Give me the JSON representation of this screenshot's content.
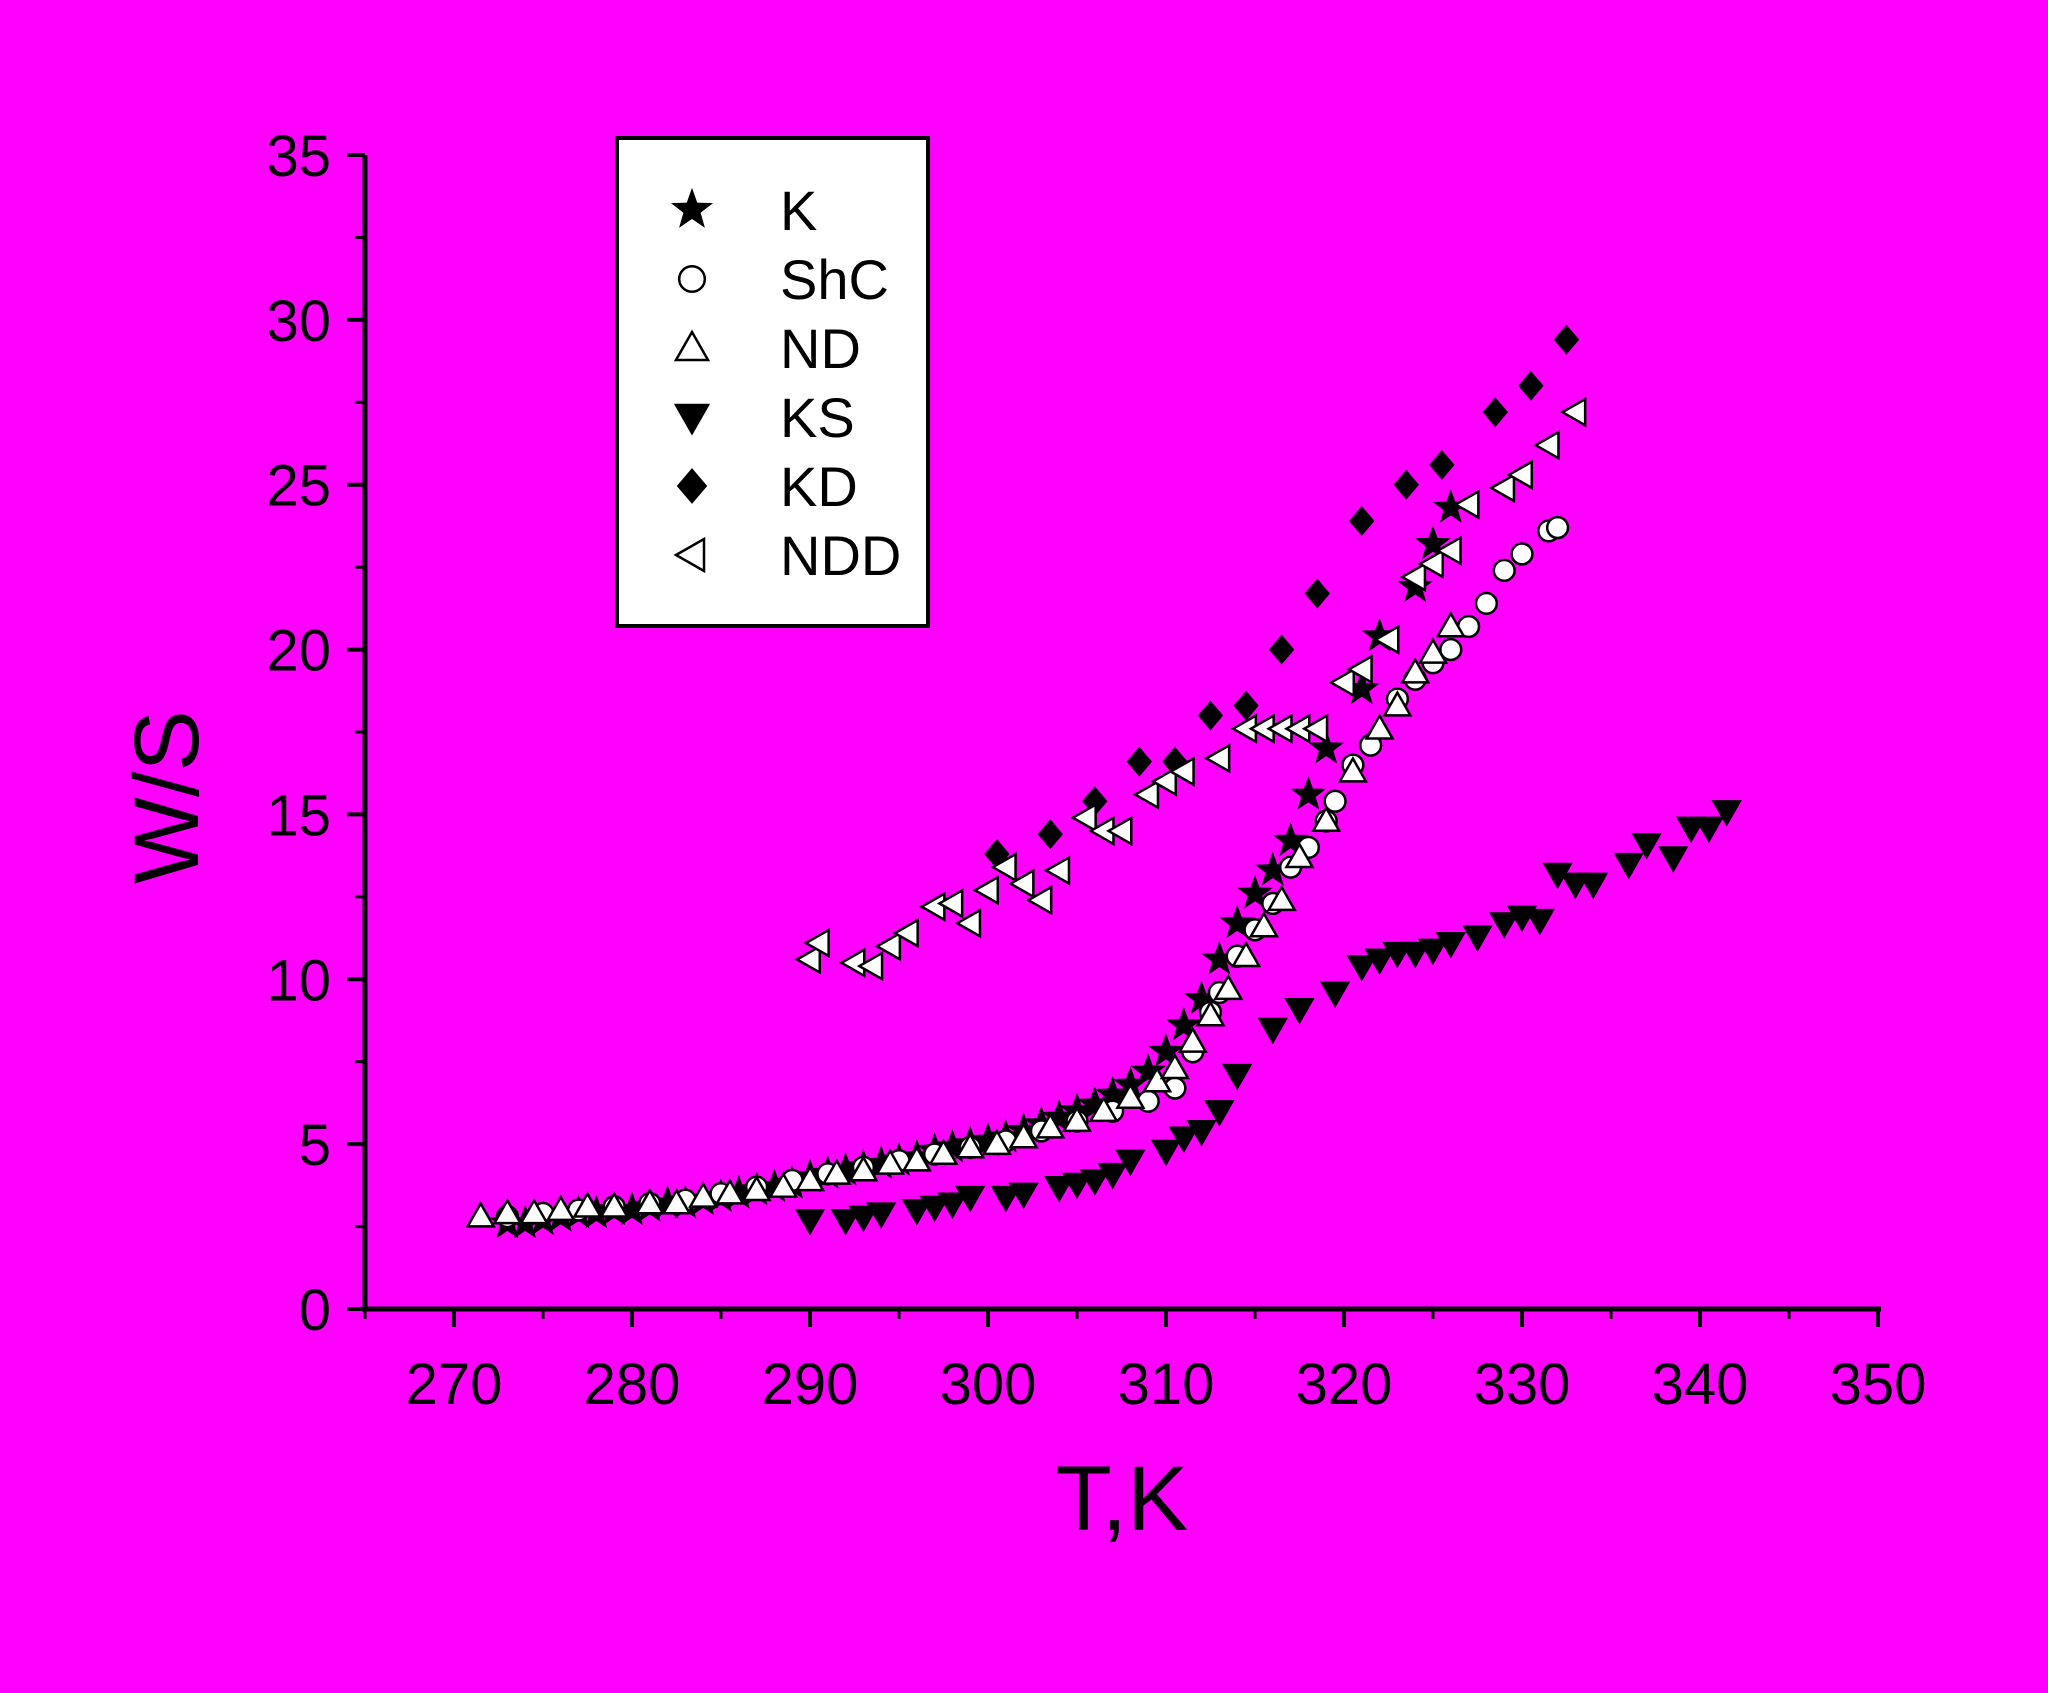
{
  "chart_data": {
    "type": "scatter",
    "xlabel": "T,K",
    "ylabel": "W/S",
    "xlim": [
      265,
      350
    ],
    "ylim": [
      0,
      35
    ],
    "x_ticks": [
      270,
      280,
      290,
      300,
      310,
      320,
      330,
      340,
      350
    ],
    "y_ticks": [
      0,
      5,
      10,
      15,
      20,
      25,
      30,
      35
    ],
    "grid": false,
    "legend_position": "top-left",
    "background": "#ff00ff",
    "series": [
      {
        "name": "K",
        "marker": "star",
        "fill": "#000000",
        "points": [
          [
            273,
            2.6
          ],
          [
            274,
            2.6
          ],
          [
            275,
            2.7
          ],
          [
            276,
            2.8
          ],
          [
            277,
            2.9
          ],
          [
            278,
            2.9
          ],
          [
            279,
            3.0
          ],
          [
            280,
            3.0
          ],
          [
            281,
            3.1
          ],
          [
            282,
            3.2
          ],
          [
            283,
            3.2
          ],
          [
            284,
            3.3
          ],
          [
            285,
            3.4
          ],
          [
            286,
            3.5
          ],
          [
            287,
            3.6
          ],
          [
            288,
            3.7
          ],
          [
            289,
            3.8
          ],
          [
            290,
            4.0
          ],
          [
            291,
            4.1
          ],
          [
            292,
            4.2
          ],
          [
            293,
            4.3
          ],
          [
            294,
            4.4
          ],
          [
            295,
            4.5
          ],
          [
            296,
            4.6
          ],
          [
            297,
            4.8
          ],
          [
            298,
            4.9
          ],
          [
            299,
            5.0
          ],
          [
            300,
            5.1
          ],
          [
            301,
            5.2
          ],
          [
            302,
            5.4
          ],
          [
            303,
            5.6
          ],
          [
            304,
            5.8
          ],
          [
            305,
            6.0
          ],
          [
            306,
            6.2
          ],
          [
            307,
            6.5
          ],
          [
            308,
            6.8
          ],
          [
            309,
            7.2
          ],
          [
            310,
            7.8
          ],
          [
            311,
            8.6
          ],
          [
            312,
            9.4
          ],
          [
            313,
            10.6
          ],
          [
            314,
            11.7
          ],
          [
            315,
            12.6
          ],
          [
            316,
            13.3
          ],
          [
            317,
            14.2
          ],
          [
            318,
            15.6
          ],
          [
            319,
            17.0
          ],
          [
            321,
            18.8
          ],
          [
            322,
            20.4
          ],
          [
            324,
            21.9
          ],
          [
            325,
            23.2
          ],
          [
            326,
            24.3
          ]
        ]
      },
      {
        "name": "ShC",
        "marker": "circle",
        "fill": "#ffffff",
        "points": [
          [
            273,
            2.8
          ],
          [
            275,
            2.9
          ],
          [
            277,
            3.0
          ],
          [
            279,
            3.1
          ],
          [
            281,
            3.2
          ],
          [
            283,
            3.3
          ],
          [
            285,
            3.5
          ],
          [
            287,
            3.7
          ],
          [
            289,
            3.9
          ],
          [
            291,
            4.1
          ],
          [
            293,
            4.3
          ],
          [
            295,
            4.5
          ],
          [
            297,
            4.7
          ],
          [
            299,
            4.9
          ],
          [
            301,
            5.1
          ],
          [
            303,
            5.4
          ],
          [
            305,
            5.7
          ],
          [
            307,
            6.0
          ],
          [
            309,
            6.3
          ],
          [
            310.5,
            6.7
          ],
          [
            311.5,
            7.8
          ],
          [
            312.5,
            9.0
          ],
          [
            313,
            9.6
          ],
          [
            314,
            10.7
          ],
          [
            315,
            11.5
          ],
          [
            316,
            12.3
          ],
          [
            317,
            13.4
          ],
          [
            318,
            14.0
          ],
          [
            319,
            14.8
          ],
          [
            319.5,
            15.4
          ],
          [
            320.5,
            16.5
          ],
          [
            321.5,
            17.1
          ],
          [
            323,
            18.5
          ],
          [
            324,
            19.1
          ],
          [
            325,
            19.6
          ],
          [
            326,
            20.0
          ],
          [
            327,
            20.7
          ],
          [
            328,
            21.4
          ],
          [
            329,
            22.4
          ],
          [
            330,
            22.9
          ],
          [
            331.5,
            23.6
          ],
          [
            332,
            23.7
          ]
        ]
      },
      {
        "name": "ND",
        "marker": "triangle-up",
        "fill": "#ffffff",
        "points": [
          [
            271.5,
            2.8
          ],
          [
            273,
            2.9
          ],
          [
            274.5,
            2.9
          ],
          [
            276,
            3.0
          ],
          [
            277.5,
            3.1
          ],
          [
            279,
            3.1
          ],
          [
            281,
            3.2
          ],
          [
            282.5,
            3.2
          ],
          [
            284,
            3.4
          ],
          [
            285.5,
            3.5
          ],
          [
            287,
            3.6
          ],
          [
            288.5,
            3.7
          ],
          [
            290,
            3.9
          ],
          [
            291.5,
            4.1
          ],
          [
            293,
            4.2
          ],
          [
            294.5,
            4.4
          ],
          [
            296,
            4.5
          ],
          [
            297.5,
            4.7
          ],
          [
            299,
            4.9
          ],
          [
            300.5,
            5.0
          ],
          [
            302,
            5.2
          ],
          [
            303.5,
            5.5
          ],
          [
            305,
            5.7
          ],
          [
            306.5,
            6.0
          ],
          [
            308,
            6.4
          ],
          [
            309.5,
            6.9
          ],
          [
            310.5,
            7.3
          ],
          [
            311.5,
            8.1
          ],
          [
            312.5,
            8.9
          ],
          [
            313.5,
            9.7
          ],
          [
            314.5,
            10.7
          ],
          [
            315.5,
            11.6
          ],
          [
            316.5,
            12.4
          ],
          [
            317.5,
            13.7
          ],
          [
            319,
            14.8
          ],
          [
            320.5,
            16.3
          ],
          [
            322,
            17.6
          ],
          [
            323,
            18.3
          ],
          [
            324,
            19.3
          ],
          [
            325,
            19.9
          ],
          [
            326,
            20.7
          ]
        ]
      },
      {
        "name": "KS",
        "marker": "triangle-down",
        "fill": "#000000",
        "points": [
          [
            290,
            2.7
          ],
          [
            292,
            2.7
          ],
          [
            293,
            2.8
          ],
          [
            294,
            2.9
          ],
          [
            296,
            3.0
          ],
          [
            297,
            3.1
          ],
          [
            298,
            3.2
          ],
          [
            299,
            3.4
          ],
          [
            301,
            3.4
          ],
          [
            302,
            3.5
          ],
          [
            304,
            3.7
          ],
          [
            305,
            3.8
          ],
          [
            306,
            3.9
          ],
          [
            307,
            4.1
          ],
          [
            308,
            4.5
          ],
          [
            310,
            4.8
          ],
          [
            311,
            5.2
          ],
          [
            312,
            5.4
          ],
          [
            313,
            6.0
          ],
          [
            314,
            7.1
          ],
          [
            316,
            8.5
          ],
          [
            317.5,
            9.1
          ],
          [
            319.5,
            9.6
          ],
          [
            321,
            10.4
          ],
          [
            322,
            10.6
          ],
          [
            323,
            10.8
          ],
          [
            324,
            10.8
          ],
          [
            325,
            10.9
          ],
          [
            326,
            11.1
          ],
          [
            327.5,
            11.3
          ],
          [
            329,
            11.7
          ],
          [
            330,
            11.9
          ],
          [
            331,
            11.8
          ],
          [
            332,
            13.2
          ],
          [
            333,
            12.9
          ],
          [
            334,
            12.9
          ],
          [
            336,
            13.5
          ],
          [
            337,
            14.1
          ],
          [
            338.5,
            13.7
          ],
          [
            339.5,
            14.6
          ],
          [
            340.5,
            14.6
          ],
          [
            341.5,
            15.1
          ]
        ]
      },
      {
        "name": "KD",
        "marker": "diamond",
        "fill": "#000000",
        "points": [
          [
            300.5,
            13.8
          ],
          [
            303.5,
            14.4
          ],
          [
            306,
            15.4
          ],
          [
            308.5,
            16.6
          ],
          [
            310.5,
            16.6
          ],
          [
            312.5,
            18.0
          ],
          [
            314.5,
            18.3
          ],
          [
            316.5,
            20.0
          ],
          [
            318.5,
            21.7
          ],
          [
            321,
            23.9
          ],
          [
            323.5,
            25.0
          ],
          [
            325.5,
            25.6
          ],
          [
            328.5,
            27.2
          ],
          [
            330.5,
            28.0
          ],
          [
            332.5,
            29.4
          ]
        ]
      },
      {
        "name": "NDD",
        "marker": "triangle-left",
        "fill": "#ffffff",
        "points": [
          [
            290,
            10.6
          ],
          [
            290.5,
            11.1
          ],
          [
            292.5,
            10.5
          ],
          [
            293.5,
            10.4
          ],
          [
            294.5,
            11.0
          ],
          [
            295.5,
            11.4
          ],
          [
            297,
            12.2
          ],
          [
            298,
            12.3
          ],
          [
            299,
            11.7
          ],
          [
            300,
            12.7
          ],
          [
            301,
            13.4
          ],
          [
            302,
            12.9
          ],
          [
            303,
            12.4
          ],
          [
            304,
            13.3
          ],
          [
            305.5,
            14.9
          ],
          [
            306.5,
            14.5
          ],
          [
            307.5,
            14.5
          ],
          [
            309,
            15.6
          ],
          [
            310,
            16.0
          ],
          [
            311,
            16.3
          ],
          [
            313,
            16.7
          ],
          [
            314.5,
            17.6
          ],
          [
            315.5,
            17.6
          ],
          [
            316.5,
            17.6
          ],
          [
            317.5,
            17.6
          ],
          [
            318.5,
            17.6
          ],
          [
            320,
            19.0
          ],
          [
            321,
            19.4
          ],
          [
            322.5,
            20.3
          ],
          [
            324,
            22.2
          ],
          [
            325,
            22.6
          ],
          [
            326,
            23.0
          ],
          [
            327,
            24.4
          ],
          [
            329,
            24.9
          ],
          [
            330,
            25.3
          ],
          [
            331.5,
            26.2
          ],
          [
            333,
            27.2
          ]
        ]
      }
    ]
  }
}
